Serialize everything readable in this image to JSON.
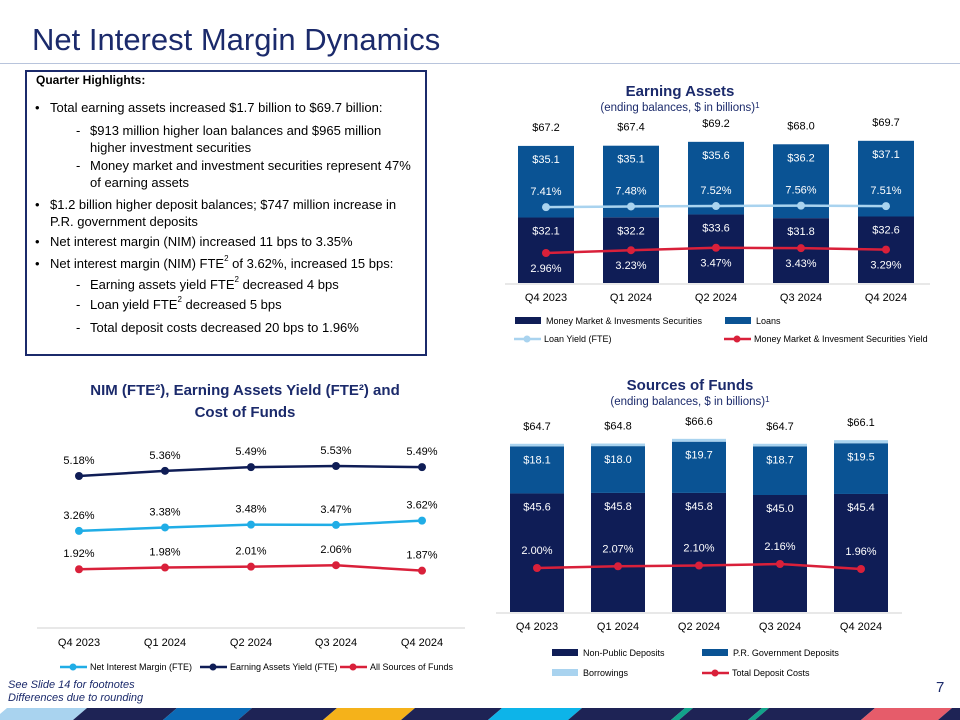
{
  "header": {
    "title": "Net Interest Margin Dynamics"
  },
  "highlights": {
    "label": "Quarter Highlights:",
    "bullet": "•",
    "dash": "-",
    "items": [
      {
        "level": 1,
        "pre": "Total earning assets increased $1.7 billion to $69.7 billion:",
        "sup": "",
        "post": ""
      },
      {
        "level": 2,
        "pre": "$913 million higher loan balances and $965 million higher investment securities",
        "sup": "",
        "post": ""
      },
      {
        "level": 2,
        "pre": "Money market and investment securities represent 47% of earning assets",
        "sup": "",
        "post": ""
      },
      {
        "level": 1,
        "pre": "$1.2 billion higher deposit balances; $747 million increase in P.R. government deposits",
        "sup": "",
        "post": ""
      },
      {
        "level": 1,
        "pre": "Net interest margin (NIM) increased 11 bps to 3.35%",
        "sup": "",
        "post": ""
      },
      {
        "level": 1,
        "pre": "Net interest margin (NIM) FTE",
        "sup": "2",
        "post": " of 3.62%, increased 15 bps:"
      },
      {
        "level": 2,
        "pre": "Earning assets yield FTE",
        "sup": "2",
        "post": " decreased 4 bps"
      },
      {
        "level": 2,
        "pre": "Loan yield FTE",
        "sup": "2",
        "post": " decreased 5 bps"
      },
      {
        "level": 2,
        "pre": "Total deposit costs decreased 20 bps to 1.96%",
        "sup": "",
        "post": ""
      }
    ]
  },
  "chart_data": [
    {
      "id": "earning-assets",
      "type": "bar",
      "title": "Earning Assets",
      "subtitle": "(ending balances, $ in billions)",
      "subtitle_sup": "1",
      "categories": [
        "Q4 2023",
        "Q1 2024",
        "Q2 2024",
        "Q3 2024",
        "Q4 2024"
      ],
      "totals": [
        "$67.2",
        "$67.4",
        "$69.2",
        "$68.0",
        "$69.7"
      ],
      "series": [
        {
          "name": "Money Market & Invesments Securities",
          "kind": "stacked-bar",
          "color": "#0f1d56",
          "values": [
            32.1,
            32.2,
            33.6,
            31.8,
            32.6
          ],
          "labels": [
            "$32.1",
            "$32.2",
            "$33.6",
            "$31.8",
            "$32.6"
          ]
        },
        {
          "name": "Loans",
          "kind": "stacked-bar",
          "color": "#0a5394",
          "values": [
            35.1,
            35.1,
            35.6,
            36.2,
            37.1
          ],
          "labels": [
            "$35.1",
            "$35.1",
            "$35.6",
            "$36.2",
            "$37.1"
          ]
        },
        {
          "name": "Loan Yield (FTE)",
          "kind": "line",
          "color": "#a9d3ef",
          "values": [
            7.41,
            7.48,
            7.52,
            7.56,
            7.51
          ],
          "labels": [
            "7.41%",
            "7.48%",
            "7.52%",
            "7.56%",
            "7.51%"
          ]
        },
        {
          "name": "Money Market & Invesment Securities Yield",
          "kind": "line",
          "color": "#d9203a",
          "values": [
            2.96,
            3.23,
            3.47,
            3.43,
            3.29
          ],
          "labels": [
            "2.96%",
            "3.23%",
            "3.47%",
            "3.43%",
            "3.29%"
          ]
        }
      ]
    },
    {
      "id": "nim",
      "type": "line",
      "title": "NIM (FTE²), Earning Assets Yield (FTE²) and",
      "title2": "Cost of Funds",
      "categories": [
        "Q4 2023",
        "Q1 2024",
        "Q2 2024",
        "Q3 2024",
        "Q4 2024"
      ],
      "series": [
        {
          "name": "Net Interest Margin (FTE)",
          "color": "#20ade6",
          "values": [
            3.26,
            3.38,
            3.48,
            3.47,
            3.62
          ],
          "labels": [
            "3.26%",
            "3.38%",
            "3.48%",
            "3.47%",
            "3.62%"
          ]
        },
        {
          "name": "Earning Assets Yield (FTE)",
          "color": "#0f1d56",
          "values": [
            5.18,
            5.36,
            5.49,
            5.53,
            5.49
          ],
          "labels": [
            "5.18%",
            "5.36%",
            "5.49%",
            "5.53%",
            "5.49%"
          ]
        },
        {
          "name": "All Sources of Funds",
          "color": "#d9203a",
          "values": [
            1.92,
            1.98,
            2.01,
            2.06,
            1.87
          ],
          "labels": [
            "1.92%",
            "1.98%",
            "2.01%",
            "2.06%",
            "1.87%"
          ]
        }
      ]
    },
    {
      "id": "sources",
      "type": "bar",
      "title": "Sources of Funds",
      "subtitle": "(ending balances, $ in billions)",
      "subtitle_sup": "1",
      "categories": [
        "Q4 2023",
        "Q1 2024",
        "Q2 2024",
        "Q3 2024",
        "Q4 2024"
      ],
      "totals": [
        "$64.7",
        "$64.8",
        "$66.6",
        "$64.7",
        "$66.1"
      ],
      "total_values": [
        64.7,
        64.8,
        66.6,
        64.7,
        66.1
      ],
      "series": [
        {
          "name": "Non-Public Deposits",
          "kind": "stacked-bar",
          "color": "#0f1d56",
          "values": [
            45.6,
            45.8,
            45.8,
            45.0,
            45.4
          ],
          "labels": [
            "$45.6",
            "$45.8",
            "$45.8",
            "$45.0",
            "$45.4"
          ]
        },
        {
          "name": "P.R. Government Deposits",
          "kind": "stacked-bar",
          "color": "#0a5394",
          "values": [
            18.1,
            18.0,
            19.7,
            18.7,
            19.5
          ],
          "labels": [
            "$18.1",
            "$18.0",
            "$19.7",
            "$18.7",
            "$19.5"
          ]
        },
        {
          "name": "Borrowings",
          "kind": "stacked-bar",
          "color": "#a9d3ef"
        },
        {
          "name": "Total Deposit Costs",
          "kind": "line",
          "color": "#d9203a",
          "values": [
            2.0,
            2.07,
            2.1,
            2.16,
            1.96
          ],
          "labels": [
            "2.00%",
            "2.07%",
            "2.10%",
            "2.16%",
            "1.96%"
          ]
        }
      ]
    }
  ],
  "footer": {
    "note1": "See Slide 14 for footnotes",
    "note2": "Differences due to rounding",
    "page": "7"
  },
  "stripe_colors": [
    "#a9d3ef",
    "#1e2355",
    "#0a6ab6",
    "#1e2355",
    "#f5b21a",
    "#1e2355",
    "#0db4e9",
    "#1e2355",
    "#12a38a",
    "#1e2355",
    "#12a38a",
    "#1e2355",
    "#e65c6a",
    "#1e2355"
  ]
}
